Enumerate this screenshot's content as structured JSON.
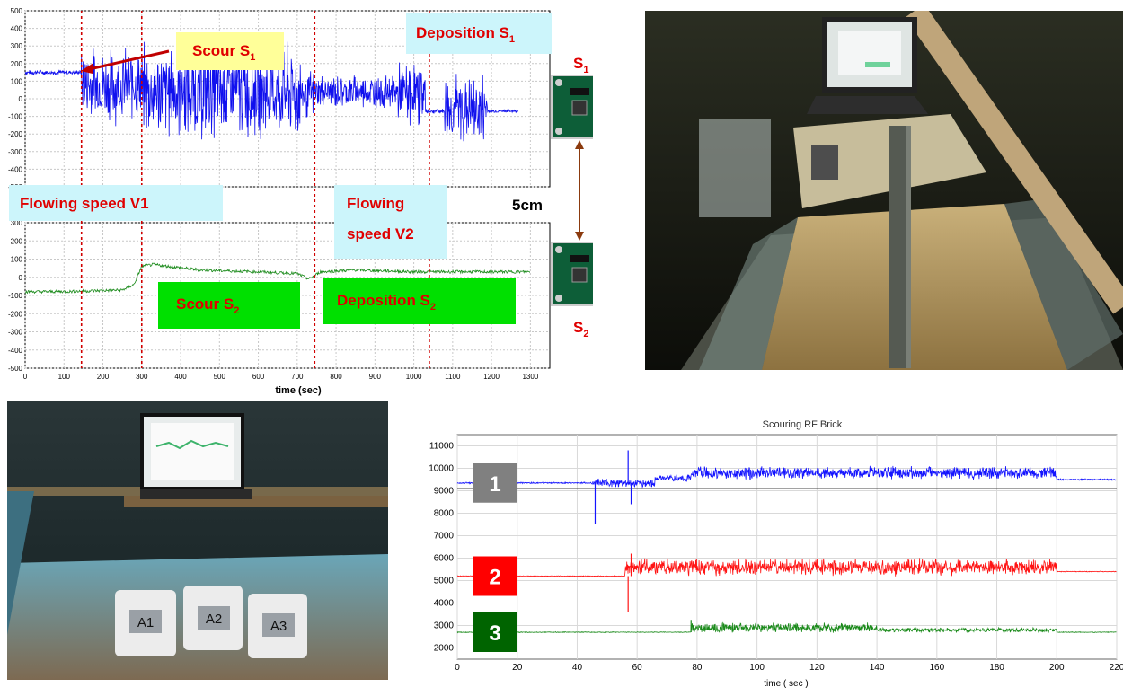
{
  "chart_data": [
    {
      "type": "line",
      "title": "",
      "xlabel": "time (sec)",
      "xlim": [
        0,
        1350
      ],
      "x_ticks": [
        "0",
        "100",
        "200",
        "300",
        "400",
        "500",
        "600",
        "700",
        "800",
        "900",
        "1000",
        "1100",
        "1200",
        "1300"
      ],
      "subplots": [
        {
          "name": "S1",
          "ylim": [
            -500,
            500
          ],
          "y_ticks": [
            "500",
            "400",
            "300",
            "200",
            "100",
            "0",
            "-100",
            "-200",
            "-300",
            "-400",
            "-500"
          ],
          "series": [
            {
              "color": "#1010ee",
              "segments": [
                {
                  "x0": 0,
                  "x1": 145,
                  "base": 150,
                  "amp": 15
                },
                {
                  "x0": 145,
                  "x1": 300,
                  "base": 80,
                  "amp": 240
                },
                {
                  "x0": 300,
                  "x1": 710,
                  "base": 40,
                  "amp": 300
                },
                {
                  "x0": 710,
                  "x1": 745,
                  "base": 20,
                  "amp": 160
                },
                {
                  "x0": 745,
                  "x1": 960,
                  "base": 40,
                  "amp": 110
                },
                {
                  "x0": 960,
                  "x1": 1030,
                  "base": 30,
                  "amp": 200
                },
                {
                  "x0": 1030,
                  "x1": 1080,
                  "base": -70,
                  "amp": 15
                },
                {
                  "x0": 1080,
                  "x1": 1190,
                  "base": -60,
                  "amp": 230
                },
                {
                  "x0": 1190,
                  "x1": 1270,
                  "base": -70,
                  "amp": 10
                }
              ]
            }
          ]
        },
        {
          "name": "S2",
          "ylim": [
            -500,
            300
          ],
          "y_ticks": [
            "300",
            "200",
            "100",
            "0",
            "-100",
            "-200",
            "-300",
            "-400",
            "-500"
          ],
          "series": [
            {
              "color": "#1a8a1a",
              "points": [
                [
                  0,
                  -80
                ],
                [
                  120,
                  -78
                ],
                [
                  250,
                  -70
                ],
                [
                  280,
                  -40
                ],
                [
                  300,
                  60
                ],
                [
                  330,
                  70
                ],
                [
                  450,
                  40
                ],
                [
                  600,
                  30
                ],
                [
                  700,
                  20
                ],
                [
                  730,
                  -10
                ],
                [
                  760,
                  30
                ],
                [
                  850,
                  40
                ],
                [
                  1000,
                  30
                ],
                [
                  1200,
                  30
                ],
                [
                  1300,
                  30
                ]
              ]
            }
          ]
        }
      ],
      "vlines": [
        145,
        300,
        745,
        1040
      ],
      "annotations": {
        "scour_s1": "Scour S",
        "deposition_s1": "Deposition S",
        "scour_s2": "Scour S",
        "deposition_s2": "Deposition S",
        "sub_1": "1",
        "sub_2": "2",
        "flowing_v1": "Flowing speed V1",
        "flowing_v2_line1": "Flowing",
        "flowing_v2_line2": "speed V2",
        "distance": "5cm",
        "sensor_s1": "S",
        "sensor_s2": "S"
      }
    },
    {
      "type": "line",
      "title": "Scouring RF Brick",
      "xlabel": "time ( sec )",
      "xlim": [
        0,
        220
      ],
      "ylim": [
        1500,
        11500
      ],
      "x_ticks": [
        "0",
        "20",
        "40",
        "60",
        "80",
        "100",
        "120",
        "140",
        "160",
        "180",
        "200",
        "220"
      ],
      "y_ticks": [
        "11000",
        "10000",
        "9000",
        "8000",
        "7000",
        "6000",
        "5000",
        "4000",
        "3000",
        "2000"
      ],
      "grid": true,
      "series": [
        {
          "name": "1",
          "color": "#1414ff",
          "label_bg": "#808080",
          "segments": [
            {
              "x0": 0,
              "x1": 45,
              "base": 9350,
              "amp": 40
            },
            {
              "x0": 45,
              "x1": 66,
              "base": 9350,
              "amp": 220
            },
            {
              "x0": 66,
              "x1": 78,
              "base": 9550,
              "amp": 200
            },
            {
              "x0": 78,
              "x1": 200,
              "base": 9800,
              "amp": 320
            },
            {
              "x0": 200,
              "x1": 220,
              "base": 9500,
              "amp": 40
            }
          ],
          "spikes": [
            [
              46,
              7500
            ],
            [
              57,
              10800
            ],
            [
              58,
              8400
            ]
          ]
        },
        {
          "name": "2",
          "color": "#ff1414",
          "label_bg": "#ff0000",
          "segments": [
            {
              "x0": 0,
              "x1": 56,
              "base": 5200,
              "amp": 20
            },
            {
              "x0": 56,
              "x1": 200,
              "base": 5600,
              "amp": 420
            },
            {
              "x0": 200,
              "x1": 220,
              "base": 5400,
              "amp": 20
            }
          ],
          "spikes": [
            [
              57,
              3600
            ],
            [
              58,
              6200
            ]
          ]
        },
        {
          "name": "3",
          "color": "#1a8a1a",
          "label_bg": "#006400",
          "segments": [
            {
              "x0": 0,
              "x1": 78,
              "base": 2700,
              "amp": 20
            },
            {
              "x0": 78,
              "x1": 140,
              "base": 2900,
              "amp": 250
            },
            {
              "x0": 140,
              "x1": 200,
              "base": 2800,
              "amp": 120
            },
            {
              "x0": 200,
              "x1": 220,
              "base": 2700,
              "amp": 20
            }
          ],
          "spikes": [
            [
              78,
              3250
            ]
          ]
        }
      ]
    }
  ],
  "photo_bricks": {
    "a1": "A1",
    "a2": "A2",
    "a3": "A3"
  },
  "colors": {
    "cyan_box": "#ccf5fb",
    "yellow_box": "#ffff99",
    "green_box": "#00e000",
    "red_text": "#e00000",
    "vline": "#d00000"
  }
}
